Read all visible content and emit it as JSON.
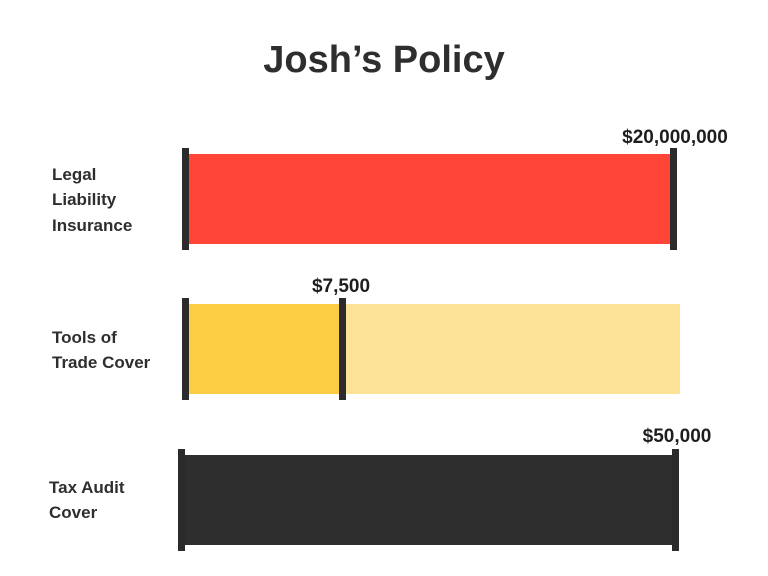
{
  "chart_data": {
    "type": "bar",
    "title": "Josh’s Policy",
    "categories": [
      [
        "Legal",
        "Liability",
        "Insurance"
      ],
      [
        "Tools of",
        "Trade Cover"
      ],
      [
        "Tax Audit",
        "Cover"
      ]
    ],
    "bars": [
      {
        "value_label": "$20,000,000",
        "fill_fraction": 1.0,
        "color": "#ff4438",
        "track_color": "#ff4438"
      },
      {
        "value_label": "$7,500",
        "fill_fraction": 0.31,
        "color": "#fdcd44",
        "track_color": "#fbe294"
      },
      {
        "value_label": "$50,000",
        "fill_fraction": 1.0,
        "color": "#2e2e2e",
        "track_color": "#2e2e2e"
      }
    ],
    "marker_color": "#2b2b2b",
    "grid": false,
    "legend": "none"
  }
}
